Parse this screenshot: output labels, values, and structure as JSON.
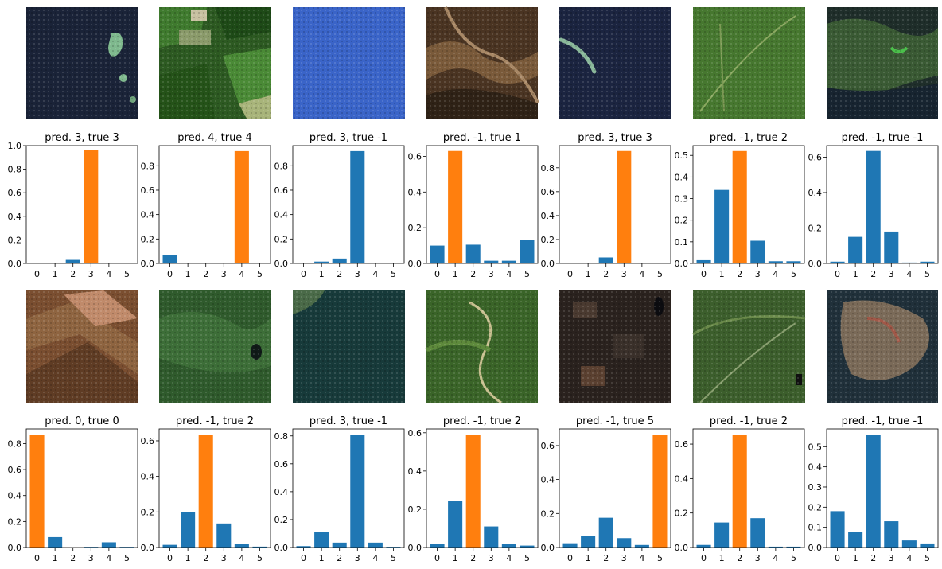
{
  "colors": {
    "bar": "#1f77b4",
    "highlight": "#ff7f0e",
    "axis": "#000000",
    "background": "#ffffff"
  },
  "categories": [
    "0",
    "1",
    "2",
    "3",
    "4",
    "5"
  ],
  "chart_data": [
    {
      "type": "bar",
      "title": "pred. 3, true 3",
      "categories": [
        "0",
        "1",
        "2",
        "3",
        "4",
        "5"
      ],
      "values": [
        0.0,
        0.0,
        0.03,
        0.96,
        0.0,
        0.0
      ],
      "highlight": 3,
      "ylim": [
        0,
        1.0
      ],
      "yticks": [
        "0.0",
        "0.2",
        "0.4",
        "0.6",
        "0.8",
        "1.0"
      ],
      "ytick_values": [
        0.0,
        0.2,
        0.4,
        0.6,
        0.8,
        1.0
      ],
      "thumbnail": "sea with small islands"
    },
    {
      "type": "bar",
      "title": "pred. 4, true 4",
      "categories": [
        "0",
        "1",
        "2",
        "3",
        "4",
        "5"
      ],
      "values": [
        0.07,
        0.005,
        0.0,
        0.0,
        0.92,
        0.0
      ],
      "highlight": 4,
      "ylim": [
        0,
        0.965
      ],
      "yticks": [
        "0.0",
        "0.2",
        "0.4",
        "0.6",
        "0.8"
      ],
      "ytick_values": [
        0.0,
        0.2,
        0.4,
        0.6,
        0.8
      ],
      "thumbnail": "green fields"
    },
    {
      "type": "bar",
      "title": "pred. 3, true -1",
      "categories": [
        "0",
        "1",
        "2",
        "3",
        "4",
        "5"
      ],
      "values": [
        0.005,
        0.015,
        0.04,
        0.92,
        0.0,
        0.0
      ],
      "highlight": null,
      "ylim": [
        0,
        0.965
      ],
      "yticks": [
        "0.0",
        "0.2",
        "0.4",
        "0.6",
        "0.8"
      ],
      "ytick_values": [
        0.0,
        0.2,
        0.4,
        0.6,
        0.8
      ],
      "thumbnail": "blue water"
    },
    {
      "type": "bar",
      "title": "pred. -1, true 1",
      "categories": [
        "0",
        "1",
        "2",
        "3",
        "4",
        "5"
      ],
      "values": [
        0.1,
        0.63,
        0.105,
        0.015,
        0.015,
        0.13
      ],
      "highlight": 1,
      "ylim": [
        0,
        0.66
      ],
      "yticks": [
        "0.0",
        "0.2",
        "0.4",
        "0.6"
      ],
      "ytick_values": [
        0.0,
        0.2,
        0.4,
        0.6
      ],
      "thumbnail": "brown terrain"
    },
    {
      "type": "bar",
      "title": "pred. 3, true 3",
      "categories": [
        "0",
        "1",
        "2",
        "3",
        "4",
        "5"
      ],
      "values": [
        0.0,
        0.0,
        0.05,
        0.94,
        0.0,
        0.0
      ],
      "highlight": 3,
      "ylim": [
        0,
        0.985
      ],
      "yticks": [
        "0.0",
        "0.2",
        "0.4",
        "0.6",
        "0.8"
      ],
      "ytick_values": [
        0.0,
        0.2,
        0.4,
        0.6,
        0.8
      ],
      "thumbnail": "sea with spit"
    },
    {
      "type": "bar",
      "title": "pred. -1, true 2",
      "categories": [
        "0",
        "1",
        "2",
        "3",
        "4",
        "5"
      ],
      "values": [
        0.015,
        0.34,
        0.52,
        0.105,
        0.01,
        0.01
      ],
      "highlight": 2,
      "ylim": [
        0,
        0.545
      ],
      "yticks": [
        "0.0",
        "0.1",
        "0.2",
        "0.3",
        "0.4",
        "0.5"
      ],
      "ytick_values": [
        0.0,
        0.1,
        0.2,
        0.3,
        0.4,
        0.5
      ],
      "thumbnail": "green forest"
    },
    {
      "type": "bar",
      "title": "pred. -1, true -1",
      "categories": [
        "0",
        "1",
        "2",
        "3",
        "4",
        "5"
      ],
      "values": [
        0.01,
        0.15,
        0.635,
        0.18,
        0.005,
        0.01
      ],
      "highlight": null,
      "ylim": [
        0,
        0.665
      ],
      "yticks": [
        "0.0",
        "0.2",
        "0.4",
        "0.6"
      ],
      "ytick_values": [
        0.0,
        0.2,
        0.4,
        0.6
      ],
      "thumbnail": "dark coastline"
    },
    {
      "type": "bar",
      "title": "pred. 0, true 0",
      "categories": [
        "0",
        "1",
        "2",
        "3",
        "4",
        "5"
      ],
      "values": [
        0.87,
        0.08,
        0.0,
        0.005,
        0.04,
        0.005
      ],
      "highlight": 0,
      "ylim": [
        0,
        0.913
      ],
      "yticks": [
        "0.0",
        "0.2",
        "0.4",
        "0.6",
        "0.8"
      ],
      "ytick_values": [
        0.0,
        0.2,
        0.4,
        0.6,
        0.8
      ],
      "thumbnail": "brown fields"
    },
    {
      "type": "bar",
      "title": "pred. -1, true 2",
      "categories": [
        "0",
        "1",
        "2",
        "3",
        "4",
        "5"
      ],
      "values": [
        0.015,
        0.2,
        0.635,
        0.135,
        0.02,
        0.005
      ],
      "highlight": 2,
      "ylim": [
        0,
        0.667
      ],
      "yticks": [
        "0.0",
        "0.2",
        "0.4",
        "0.6"
      ],
      "ytick_values": [
        0.0,
        0.2,
        0.4,
        0.6
      ],
      "thumbnail": "green forest with lake"
    },
    {
      "type": "bar",
      "title": "pred. 3, true -1",
      "categories": [
        "0",
        "1",
        "2",
        "3",
        "4",
        "5"
      ],
      "values": [
        0.01,
        0.11,
        0.035,
        0.81,
        0.035,
        0.005
      ],
      "highlight": null,
      "ylim": [
        0,
        0.85
      ],
      "yticks": [
        "0.0",
        "0.2",
        "0.4",
        "0.6",
        "0.8"
      ],
      "ytick_values": [
        0.0,
        0.2,
        0.4,
        0.6,
        0.8
      ],
      "thumbnail": "dark teal water"
    },
    {
      "type": "bar",
      "title": "pred. -1, true 2",
      "categories": [
        "0",
        "1",
        "2",
        "3",
        "4",
        "5"
      ],
      "values": [
        0.02,
        0.245,
        0.59,
        0.11,
        0.02,
        0.01
      ],
      "highlight": 2,
      "ylim": [
        0,
        0.62
      ],
      "yticks": [
        "0.0",
        "0.2",
        "0.4",
        "0.6"
      ],
      "ytick_values": [
        0.0,
        0.2,
        0.4,
        0.6
      ],
      "thumbnail": "green forest"
    },
    {
      "type": "bar",
      "title": "pred. -1, true 5",
      "categories": [
        "0",
        "1",
        "2",
        "3",
        "4",
        "5"
      ],
      "values": [
        0.025,
        0.07,
        0.175,
        0.055,
        0.015,
        0.665
      ],
      "highlight": 5,
      "ylim": [
        0,
        0.698
      ],
      "yticks": [
        "0.0",
        "0.2",
        "0.4",
        "0.6"
      ],
      "ytick_values": [
        0.0,
        0.2,
        0.4,
        0.6
      ],
      "thumbnail": "dark urban texture"
    },
    {
      "type": "bar",
      "title": "pred. -1, true 2",
      "categories": [
        "0",
        "1",
        "2",
        "3",
        "4",
        "5"
      ],
      "values": [
        0.015,
        0.145,
        0.655,
        0.17,
        0.005,
        0.005
      ],
      "highlight": 2,
      "ylim": [
        0,
        0.688
      ],
      "yticks": [
        "0.0",
        "0.2",
        "0.4",
        "0.6"
      ],
      "ytick_values": [
        0.0,
        0.2,
        0.4,
        0.6
      ],
      "thumbnail": "green forest"
    },
    {
      "type": "bar",
      "title": "pred. -1, true -1",
      "categories": [
        "0",
        "1",
        "2",
        "3",
        "4",
        "5"
      ],
      "values": [
        0.18,
        0.075,
        0.56,
        0.13,
        0.035,
        0.02
      ],
      "highlight": null,
      "ylim": [
        0,
        0.588
      ],
      "yticks": [
        "0.0",
        "0.1",
        "0.2",
        "0.3",
        "0.4",
        "0.5"
      ],
      "ytick_values": [
        0.0,
        0.1,
        0.2,
        0.3,
        0.4,
        0.5
      ],
      "thumbnail": "coastline islands"
    }
  ]
}
